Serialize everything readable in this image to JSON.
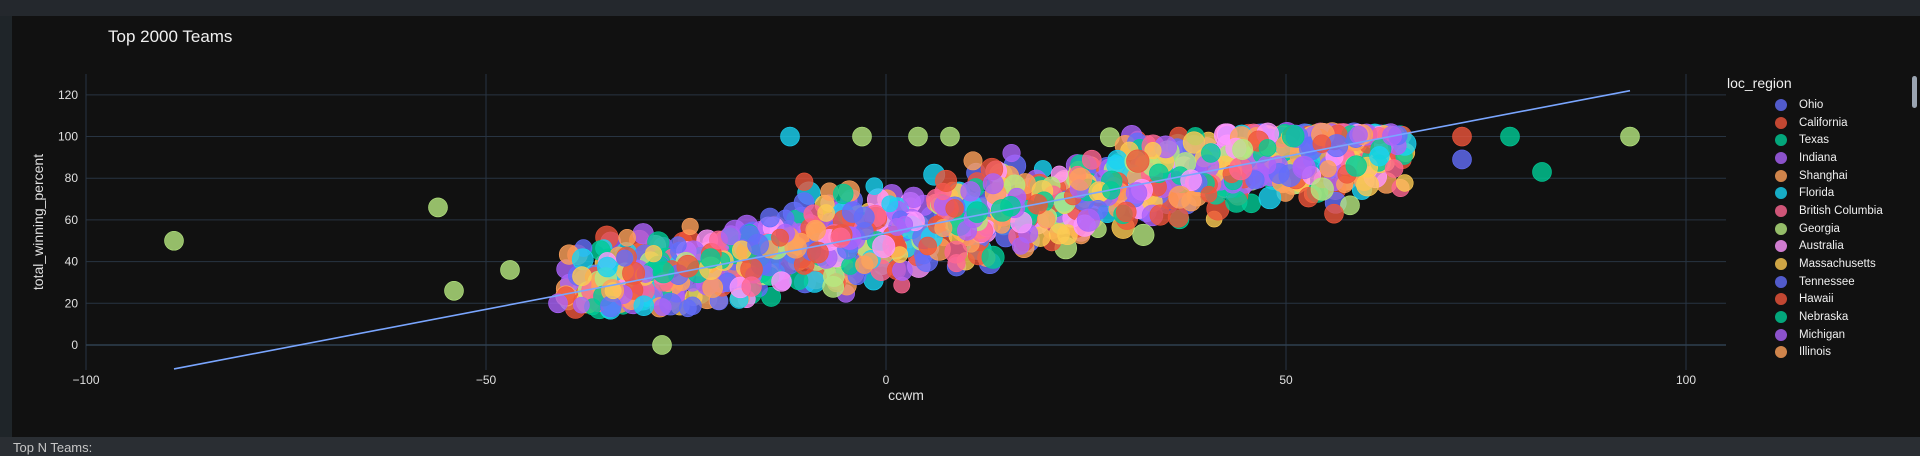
{
  "chart_data": {
    "type": "scatter",
    "title": "Top 2000 Teams",
    "xlabel": "ccwm",
    "ylabel": "total_winning_percent",
    "xlim": [
      -100,
      105
    ],
    "ylim": [
      -12,
      130
    ],
    "x_ticks": [
      -100,
      -50,
      0,
      50,
      100
    ],
    "x_tick_labels": [
      "−100",
      "−50",
      "0",
      "50",
      "100"
    ],
    "y_ticks": [
      0,
      20,
      40,
      60,
      80,
      100,
      120
    ],
    "grid": true,
    "legend_placement": "right",
    "legend_title": "loc_region",
    "series": [
      {
        "name": "Ohio",
        "color": "#636efa"
      },
      {
        "name": "California",
        "color": "#ef553b"
      },
      {
        "name": "Texas",
        "color": "#00cc96"
      },
      {
        "name": "Indiana",
        "color": "#ab63fa"
      },
      {
        "name": "Shanghai",
        "color": "#ffa15a"
      },
      {
        "name": "Florida",
        "color": "#19d3f3"
      },
      {
        "name": "British Columbia",
        "color": "#ff6692"
      },
      {
        "name": "Georgia",
        "color": "#b6e880"
      },
      {
        "name": "Australia",
        "color": "#ff97ff"
      },
      {
        "name": "Massachusetts",
        "color": "#fecb52"
      },
      {
        "name": "Tennessee",
        "color": "#636efa"
      },
      {
        "name": "Hawaii",
        "color": "#ef553b"
      },
      {
        "name": "Nebraska",
        "color": "#00cc96"
      },
      {
        "name": "Michigan",
        "color": "#ab63fa"
      },
      {
        "name": "Illinois",
        "color": "#ffa15a"
      }
    ],
    "outliers": [
      {
        "x": -89,
        "y": 50,
        "s": 7
      },
      {
        "x": -56,
        "y": 66,
        "s": 7
      },
      {
        "x": -54,
        "y": 26,
        "s": 7
      },
      {
        "x": -47,
        "y": 36,
        "s": 7
      },
      {
        "x": -28,
        "y": 0,
        "s": 7
      },
      {
        "x": -12,
        "y": 100,
        "s": 5
      },
      {
        "x": -3,
        "y": 100,
        "s": 7
      },
      {
        "x": 4,
        "y": 100,
        "s": 7
      },
      {
        "x": 8,
        "y": 100,
        "s": 7
      },
      {
        "x": 72,
        "y": 100,
        "s": 1
      },
      {
        "x": 72,
        "y": 89,
        "s": 0
      },
      {
        "x": 78,
        "y": 100,
        "s": 2
      },
      {
        "x": 82,
        "y": 83,
        "s": 12
      },
      {
        "x": 93,
        "y": 100,
        "s": 7
      },
      {
        "x": 58,
        "y": 67,
        "s": 7
      },
      {
        "x": 56,
        "y": 63,
        "s": 1
      },
      {
        "x": -38,
        "y": 33,
        "s": 9
      },
      {
        "x": -41,
        "y": 20,
        "s": 13
      }
    ],
    "trendline": {
      "x": [
        -89,
        93
      ],
      "y": [
        -11.5,
        122
      ]
    },
    "dense_cloud": {
      "count": 1300,
      "x_range": [
        -40,
        65
      ],
      "y_range": [
        17,
        101
      ],
      "slope": 0.74,
      "intercept": 54,
      "spread": 10
    }
  },
  "bottom": {
    "label": "Top N Teams:"
  }
}
